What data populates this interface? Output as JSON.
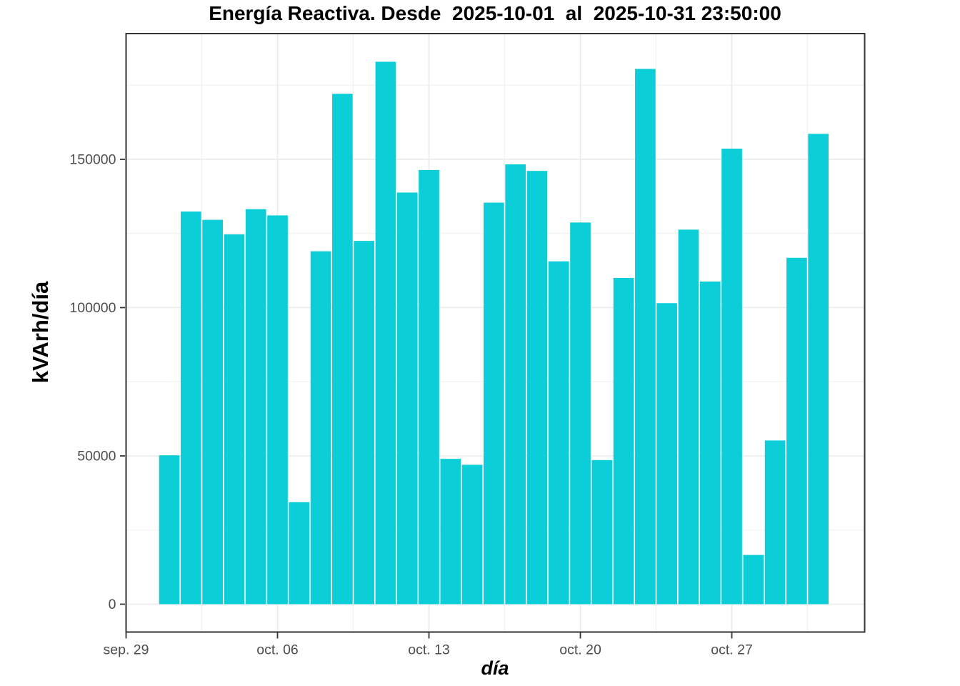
{
  "chart_data": {
    "type": "bar",
    "title": "Energía Reactiva. Desde  2025-10-01  al  2025-10-31 23:50:00",
    "xlabel": "día",
    "ylabel": "kVArh/día",
    "categories": [
      "2025-10-01",
      "2025-10-02",
      "2025-10-03",
      "2025-10-04",
      "2025-10-05",
      "2025-10-06",
      "2025-10-07",
      "2025-10-08",
      "2025-10-09",
      "2025-10-10",
      "2025-10-11",
      "2025-10-12",
      "2025-10-13",
      "2025-10-14",
      "2025-10-15",
      "2025-10-16",
      "2025-10-17",
      "2025-10-18",
      "2025-10-19",
      "2025-10-20",
      "2025-10-21",
      "2025-10-22",
      "2025-10-23",
      "2025-10-24",
      "2025-10-25",
      "2025-10-26",
      "2025-10-27",
      "2025-10-28",
      "2025-10-29",
      "2025-10-30",
      "2025-10-31"
    ],
    "values": [
      50200,
      132400,
      129600,
      124700,
      133200,
      131100,
      34400,
      119000,
      172100,
      122500,
      182900,
      138800,
      146400,
      49000,
      47000,
      135400,
      148300,
      146100,
      115600,
      128700,
      48600,
      110000,
      180500,
      101500,
      126300,
      108800,
      153600,
      16600,
      55200,
      116800,
      158600
    ],
    "ylim": [
      0,
      192400
    ],
    "x_domain_days": [
      0,
      34.14
    ],
    "y_ticks": [
      {
        "value": 0,
        "label": "0"
      },
      {
        "value": 50000,
        "label": "50000"
      },
      {
        "value": 100000,
        "label": "100000"
      },
      {
        "value": 150000,
        "label": "150000"
      }
    ],
    "y_minor_values": [
      25000,
      75000,
      125000,
      175000
    ],
    "x_ticks": [
      {
        "day": 0,
        "label": "sep. 29"
      },
      {
        "day": 7,
        "label": "oct. 06"
      },
      {
        "day": 14,
        "label": "oct. 13"
      },
      {
        "day": 21,
        "label": "oct. 20"
      },
      {
        "day": 28,
        "label": "oct. 27"
      }
    ],
    "x_minor_days": [
      3.5,
      10.5,
      17.5,
      24.5,
      31.5
    ],
    "grid": true,
    "legend": false,
    "style": {
      "bar_fill": "#0cced8",
      "panel_border_color": "#333333",
      "tick_mark_color": "#333333",
      "grid_major_color": "#ebebeb",
      "grid_minor_color": "#f0f0f0",
      "tick_label_color": "#4d4d4d",
      "title_color": "#000000",
      "background": "#ffffff"
    }
  }
}
